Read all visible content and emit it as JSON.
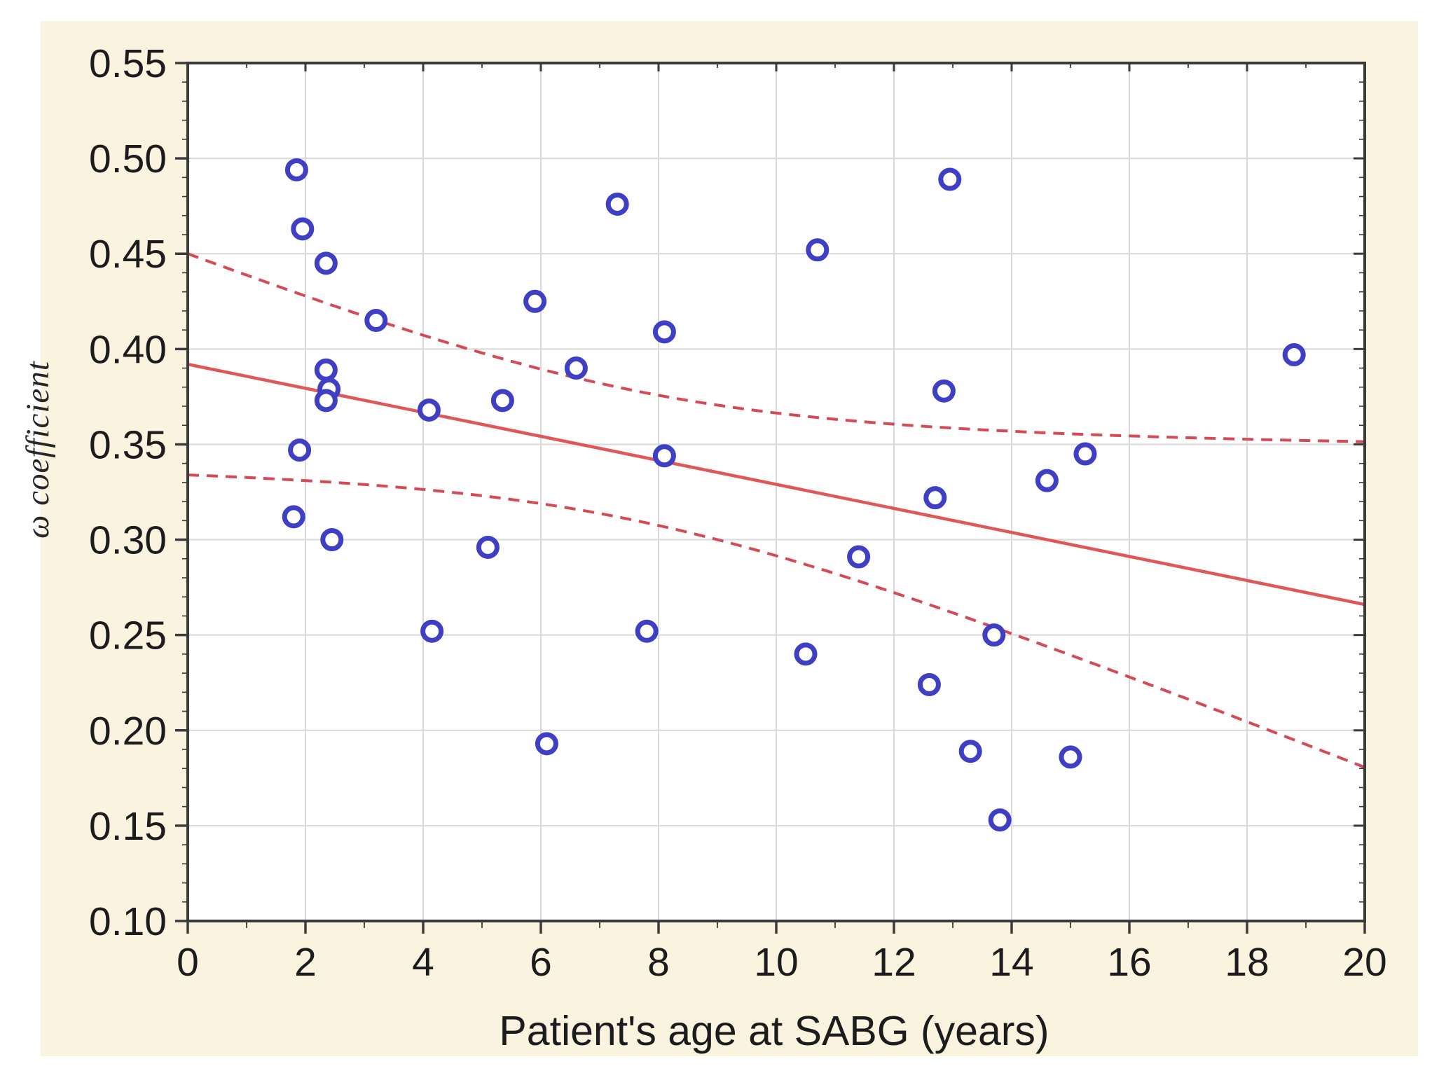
{
  "figure": {
    "outer_background": "#ffffff",
    "background_color": "#faf3e0"
  },
  "chart_data": {
    "type": "scatter",
    "title": "",
    "xlabel": "Patient's age at SABG (years)",
    "ylabel": "ω coefficient",
    "xlim": [
      0,
      20
    ],
    "ylim": [
      0.1,
      0.55
    ],
    "xticks": [
      0,
      2,
      4,
      6,
      8,
      10,
      12,
      14,
      16,
      18,
      20
    ],
    "yticks": [
      0.1,
      0.15,
      0.2,
      0.25,
      0.3,
      0.35,
      0.4,
      0.45,
      0.5,
      0.55
    ],
    "x_minor_step": 1,
    "y_minor_step": 0.01,
    "grid": true,
    "legend_position": "none",
    "points": [
      [
        1.85,
        0.494
      ],
      [
        1.95,
        0.463
      ],
      [
        2.35,
        0.445
      ],
      [
        3.2,
        0.415
      ],
      [
        2.35,
        0.389
      ],
      [
        2.4,
        0.379
      ],
      [
        2.35,
        0.373
      ],
      [
        1.9,
        0.347
      ],
      [
        1.8,
        0.312
      ],
      [
        2.45,
        0.3
      ],
      [
        4.1,
        0.368
      ],
      [
        4.15,
        0.252
      ],
      [
        5.1,
        0.296
      ],
      [
        5.35,
        0.373
      ],
      [
        5.9,
        0.425
      ],
      [
        6.1,
        0.193
      ],
      [
        6.6,
        0.39
      ],
      [
        7.3,
        0.476
      ],
      [
        7.8,
        0.252
      ],
      [
        8.1,
        0.409
      ],
      [
        8.1,
        0.344
      ],
      [
        10.5,
        0.24
      ],
      [
        10.7,
        0.452
      ],
      [
        11.4,
        0.291
      ],
      [
        12.6,
        0.224
      ],
      [
        12.95,
        0.489
      ],
      [
        12.85,
        0.378
      ],
      [
        12.7,
        0.322
      ],
      [
        13.3,
        0.189
      ],
      [
        13.7,
        0.25
      ],
      [
        13.8,
        0.153
      ],
      [
        14.6,
        0.331
      ],
      [
        15.0,
        0.186
      ],
      [
        15.25,
        0.345
      ],
      [
        18.8,
        0.397
      ]
    ],
    "regression_line": {
      "intercept": 0.392,
      "slope": -0.0063
    },
    "confidence_band": {
      "center_x": 7.5,
      "a": 0.001156,
      "b": 3.93e-05
    },
    "colors": {
      "point_stroke": "#3f3fc6",
      "point_fill": "#ffffff",
      "regression": "#e0575a",
      "confidence": "#d44a55",
      "grid": "#d9d9d9",
      "frame": "#3b3b3b",
      "tick": "#3b3b3b",
      "text": "#1c1c1c",
      "plot_background": "#fefefe"
    }
  }
}
